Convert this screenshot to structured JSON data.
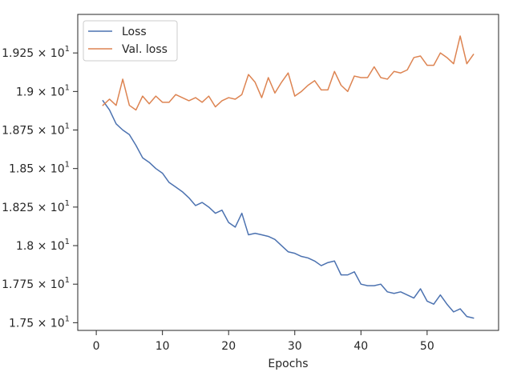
{
  "chart_data": {
    "type": "line",
    "title": "",
    "xlabel": "Epochs",
    "ylabel": "",
    "xlim": [
      -2.8,
      60.8
    ],
    "ylim": [
      17.45,
      19.5
    ],
    "xticks": [
      0,
      10,
      20,
      30,
      40,
      50
    ],
    "xtick_labels": [
      "0",
      "10",
      "20",
      "30",
      "40",
      "50"
    ],
    "yticks": [
      17.5,
      17.75,
      18.0,
      18.25,
      18.5,
      18.75,
      19.0,
      19.25
    ],
    "ytick_mantissas": [
      "1.75",
      "1.775",
      "1.8",
      "1.825",
      "1.85",
      "1.875",
      "1.9",
      "1.925"
    ],
    "ytick_base": "× 10",
    "ytick_exponent": "1",
    "legend_position": "upper left",
    "grid": false,
    "x": [
      1,
      2,
      3,
      4,
      5,
      6,
      7,
      8,
      9,
      10,
      11,
      12,
      13,
      14,
      15,
      16,
      17,
      18,
      19,
      20,
      21,
      22,
      23,
      24,
      25,
      26,
      27,
      28,
      29,
      30,
      31,
      32,
      33,
      34,
      35,
      36,
      37,
      38,
      39,
      40,
      41,
      42,
      43,
      44,
      45,
      46,
      47,
      48,
      49,
      50,
      51,
      52,
      53,
      54,
      55,
      56,
      57
    ],
    "series": [
      {
        "name": "Loss",
        "color": "#4c72b0",
        "values": [
          18.94,
          18.88,
          18.79,
          18.75,
          18.72,
          18.65,
          18.57,
          18.54,
          18.5,
          18.47,
          18.41,
          18.38,
          18.35,
          18.31,
          18.26,
          18.28,
          18.25,
          18.21,
          18.23,
          18.15,
          18.12,
          18.21,
          18.07,
          18.08,
          18.07,
          18.06,
          18.04,
          18.0,
          17.96,
          17.95,
          17.93,
          17.92,
          17.9,
          17.87,
          17.89,
          17.9,
          17.81,
          17.81,
          17.83,
          17.75,
          17.74,
          17.74,
          17.75,
          17.7,
          17.69,
          17.7,
          17.68,
          17.66,
          17.72,
          17.64,
          17.62,
          17.68,
          17.62,
          17.57,
          17.59,
          17.54,
          17.53
        ]
      },
      {
        "name": "Val. loss",
        "color": "#dd8452",
        "values": [
          18.91,
          18.95,
          18.91,
          19.08,
          18.91,
          18.88,
          18.97,
          18.92,
          18.97,
          18.93,
          18.93,
          18.98,
          18.96,
          18.94,
          18.96,
          18.93,
          18.97,
          18.9,
          18.94,
          18.96,
          18.95,
          18.98,
          19.11,
          19.06,
          18.96,
          19.09,
          18.99,
          19.06,
          19.12,
          18.97,
          19.0,
          19.04,
          19.07,
          19.01,
          19.01,
          19.13,
          19.04,
          19.0,
          19.1,
          19.09,
          19.09,
          19.16,
          19.09,
          19.08,
          19.13,
          19.12,
          19.14,
          19.22,
          19.23,
          19.17,
          19.17,
          19.25,
          19.22,
          19.18,
          19.36,
          19.18,
          19.24
        ]
      }
    ]
  }
}
